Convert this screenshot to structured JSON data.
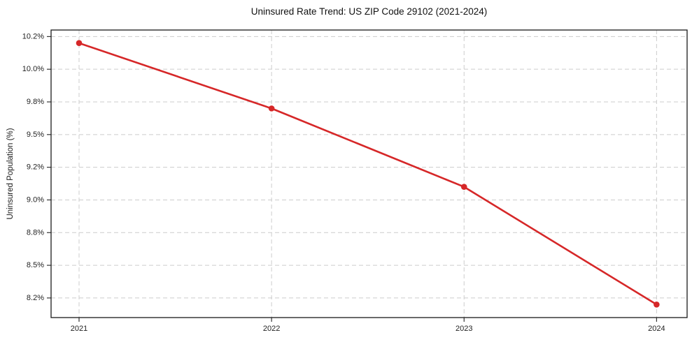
{
  "chart_data": {
    "type": "line",
    "title": "Uninsured Rate Trend: US ZIP Code 29102 (2021-2024)",
    "xlabel": "",
    "ylabel": "Uninsured Population (%)",
    "x": [
      2021,
      2022,
      2023,
      2024
    ],
    "x_tick_labels": [
      "2021",
      "2022",
      "2023",
      "2024"
    ],
    "series": [
      {
        "name": "Uninsured rate",
        "values": [
          10.2,
          9.7,
          9.1,
          8.2
        ]
      }
    ],
    "y_ticks": [
      {
        "value": 10.25,
        "label": "10.2%"
      },
      {
        "value": 10.0,
        "label": "10.0%"
      },
      {
        "value": 9.75,
        "label": "9.8%"
      },
      {
        "value": 9.5,
        "label": "9.5%"
      },
      {
        "value": 9.25,
        "label": "9.2%"
      },
      {
        "value": 9.0,
        "label": "9.0%"
      },
      {
        "value": 8.75,
        "label": "8.8%"
      },
      {
        "value": 8.5,
        "label": "8.5%"
      },
      {
        "value": 8.25,
        "label": "8.2%"
      }
    ],
    "ylim": [
      8.1,
      10.3
    ],
    "grid": true,
    "grid_style": "dashed",
    "legend": "none",
    "marker": "circle",
    "colors": {
      "line": "#d62728",
      "grid": "#cccccc",
      "spine": "#1a1a1a",
      "text": "#222222"
    }
  }
}
